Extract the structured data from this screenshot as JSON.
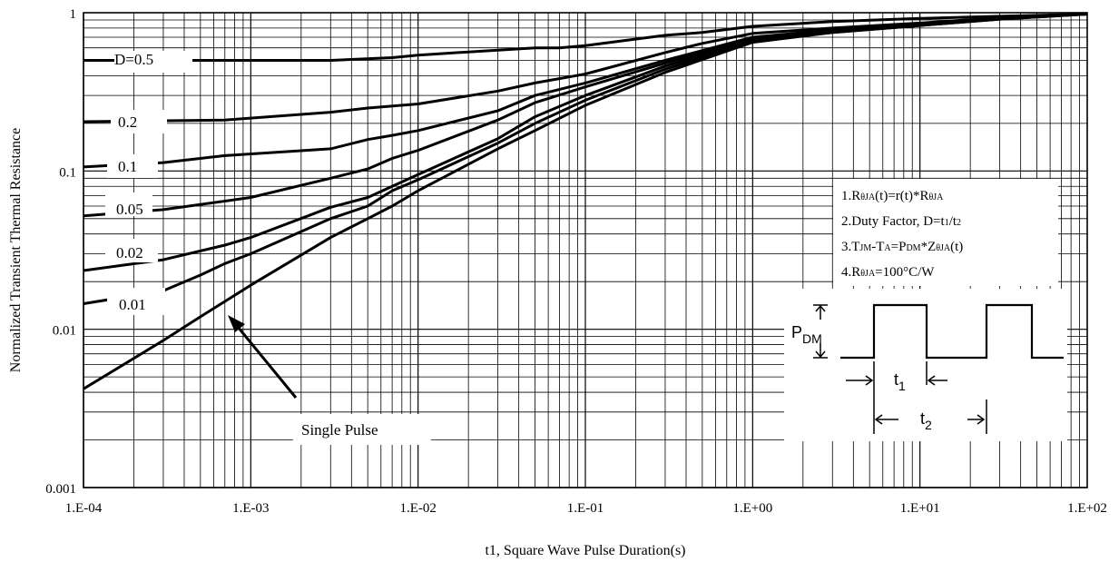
{
  "chart_data": {
    "type": "line",
    "x_scale": "log",
    "y_scale": "log",
    "xlim": [
      0.0001,
      100
    ],
    "ylim": [
      0.001,
      1
    ],
    "x_ticks": [
      0.0001,
      0.001,
      0.01,
      0.1,
      1,
      10,
      100
    ],
    "x_tick_labels": [
      "1.E-04",
      "1.E-03",
      "1.E-02",
      "1.E-01",
      "1.E+00",
      "1.E+01",
      "1.E+02"
    ],
    "y_ticks": [
      0.001,
      0.01,
      0.1,
      1
    ],
    "y_tick_labels": [
      "0.001",
      "0.01",
      "0.1",
      "1"
    ],
    "xlabel": "t1, Square Wave Pulse Duration(s)",
    "ylabel": "Normalized Transient Thermal Resistance",
    "grid": true,
    "series": [
      {
        "name": "D=0.5",
        "x": [
          0.0001,
          0.001,
          0.003,
          0.007,
          0.01,
          0.03,
          0.05,
          0.07,
          0.1,
          0.3,
          0.5,
          1,
          3,
          10,
          30,
          100
        ],
        "y": [
          0.5,
          0.5,
          0.5,
          0.52,
          0.54,
          0.58,
          0.6,
          0.6,
          0.62,
          0.72,
          0.75,
          0.82,
          0.88,
          0.92,
          0.95,
          0.98
        ]
      },
      {
        "name": "0.2",
        "x": [
          0.0001,
          0.0007,
          0.003,
          0.005,
          0.01,
          0.03,
          0.05,
          0.1,
          0.3,
          0.5,
          1,
          3,
          10,
          30,
          100
        ],
        "y": [
          0.205,
          0.21,
          0.235,
          0.25,
          0.265,
          0.32,
          0.36,
          0.41,
          0.56,
          0.64,
          0.74,
          0.8,
          0.86,
          0.93,
          0.98
        ]
      },
      {
        "name": "0.1",
        "x": [
          0.0001,
          0.0003,
          0.0007,
          0.003,
          0.005,
          0.007,
          0.01,
          0.03,
          0.05,
          0.1,
          0.3,
          1,
          3,
          10,
          30,
          100
        ],
        "y": [
          0.106,
          0.113,
          0.125,
          0.138,
          0.158,
          0.168,
          0.18,
          0.24,
          0.3,
          0.36,
          0.5,
          0.7,
          0.78,
          0.84,
          0.92,
          0.98
        ]
      },
      {
        "name": "0.05",
        "x": [
          0.0001,
          0.0003,
          0.001,
          0.003,
          0.005,
          0.007,
          0.01,
          0.03,
          0.05,
          0.1,
          0.3,
          1,
          3,
          10,
          30,
          100
        ],
        "y": [
          0.052,
          0.057,
          0.068,
          0.09,
          0.103,
          0.12,
          0.135,
          0.21,
          0.27,
          0.34,
          0.48,
          0.68,
          0.76,
          0.84,
          0.92,
          0.98
        ]
      },
      {
        "name": "0.02",
        "x": [
          0.0001,
          0.0003,
          0.0007,
          0.001,
          0.003,
          0.005,
          0.007,
          0.01,
          0.03,
          0.05,
          0.1,
          0.3,
          1,
          3,
          10,
          30,
          100
        ],
        "y": [
          0.0235,
          0.0275,
          0.034,
          0.038,
          0.059,
          0.068,
          0.08,
          0.095,
          0.16,
          0.22,
          0.3,
          0.46,
          0.67,
          0.76,
          0.84,
          0.92,
          0.98
        ]
      },
      {
        "name": "0.01",
        "x": [
          0.0001,
          0.0003,
          0.0005,
          0.0007,
          0.001,
          0.003,
          0.005,
          0.007,
          0.01,
          0.03,
          0.05,
          0.1,
          0.3,
          1,
          3,
          10,
          30,
          100
        ],
        "y": [
          0.0145,
          0.0175,
          0.022,
          0.026,
          0.03,
          0.05,
          0.06,
          0.075,
          0.088,
          0.15,
          0.2,
          0.28,
          0.44,
          0.66,
          0.75,
          0.83,
          0.91,
          0.98
        ]
      },
      {
        "name": "Single Pulse",
        "x": [
          0.0001,
          0.0003,
          0.0005,
          0.0007,
          0.001,
          0.003,
          0.005,
          0.007,
          0.01,
          0.03,
          0.05,
          0.1,
          0.3,
          1,
          3,
          10,
          30,
          100
        ],
        "y": [
          0.0042,
          0.0085,
          0.012,
          0.015,
          0.019,
          0.038,
          0.05,
          0.06,
          0.075,
          0.138,
          0.18,
          0.26,
          0.42,
          0.65,
          0.75,
          0.83,
          0.91,
          0.98
        ]
      }
    ],
    "curve_labels": [
      "D=0.5",
      "0.2",
      "0.1",
      "0.05",
      "0.02",
      "0.01",
      "Single Pulse"
    ],
    "notes": [
      {
        "segments": [
          [
            "1.R",
            "n"
          ],
          [
            "θJA",
            "s"
          ],
          [
            "(t)=r(t)*R",
            "n"
          ],
          [
            "θJA",
            "s"
          ]
        ]
      },
      {
        "segments": [
          [
            "2.Duty Factor, D=t",
            "n"
          ],
          [
            "1",
            "s"
          ],
          [
            "/t",
            "n"
          ],
          [
            "2",
            "s"
          ]
        ]
      },
      {
        "segments": [
          [
            "3.T",
            "n"
          ],
          [
            "JM",
            "s"
          ],
          [
            "-T",
            "n"
          ],
          [
            "A",
            "s"
          ],
          [
            "=P",
            "n"
          ],
          [
            "DM",
            "s"
          ],
          [
            "*Z",
            "n"
          ],
          [
            "θJA",
            "s"
          ],
          [
            "(t)",
            "n"
          ]
        ]
      },
      {
        "segments": [
          [
            "4.R",
            "n"
          ],
          [
            "θJA",
            "s"
          ],
          [
            "=100°C/W",
            "n"
          ]
        ]
      }
    ],
    "pulse_diagram": {
      "p_label": "P",
      "p_sub": "DM",
      "t1_label": "t",
      "t1_sub": "1",
      "t2_label": "t",
      "t2_sub": "2"
    }
  }
}
